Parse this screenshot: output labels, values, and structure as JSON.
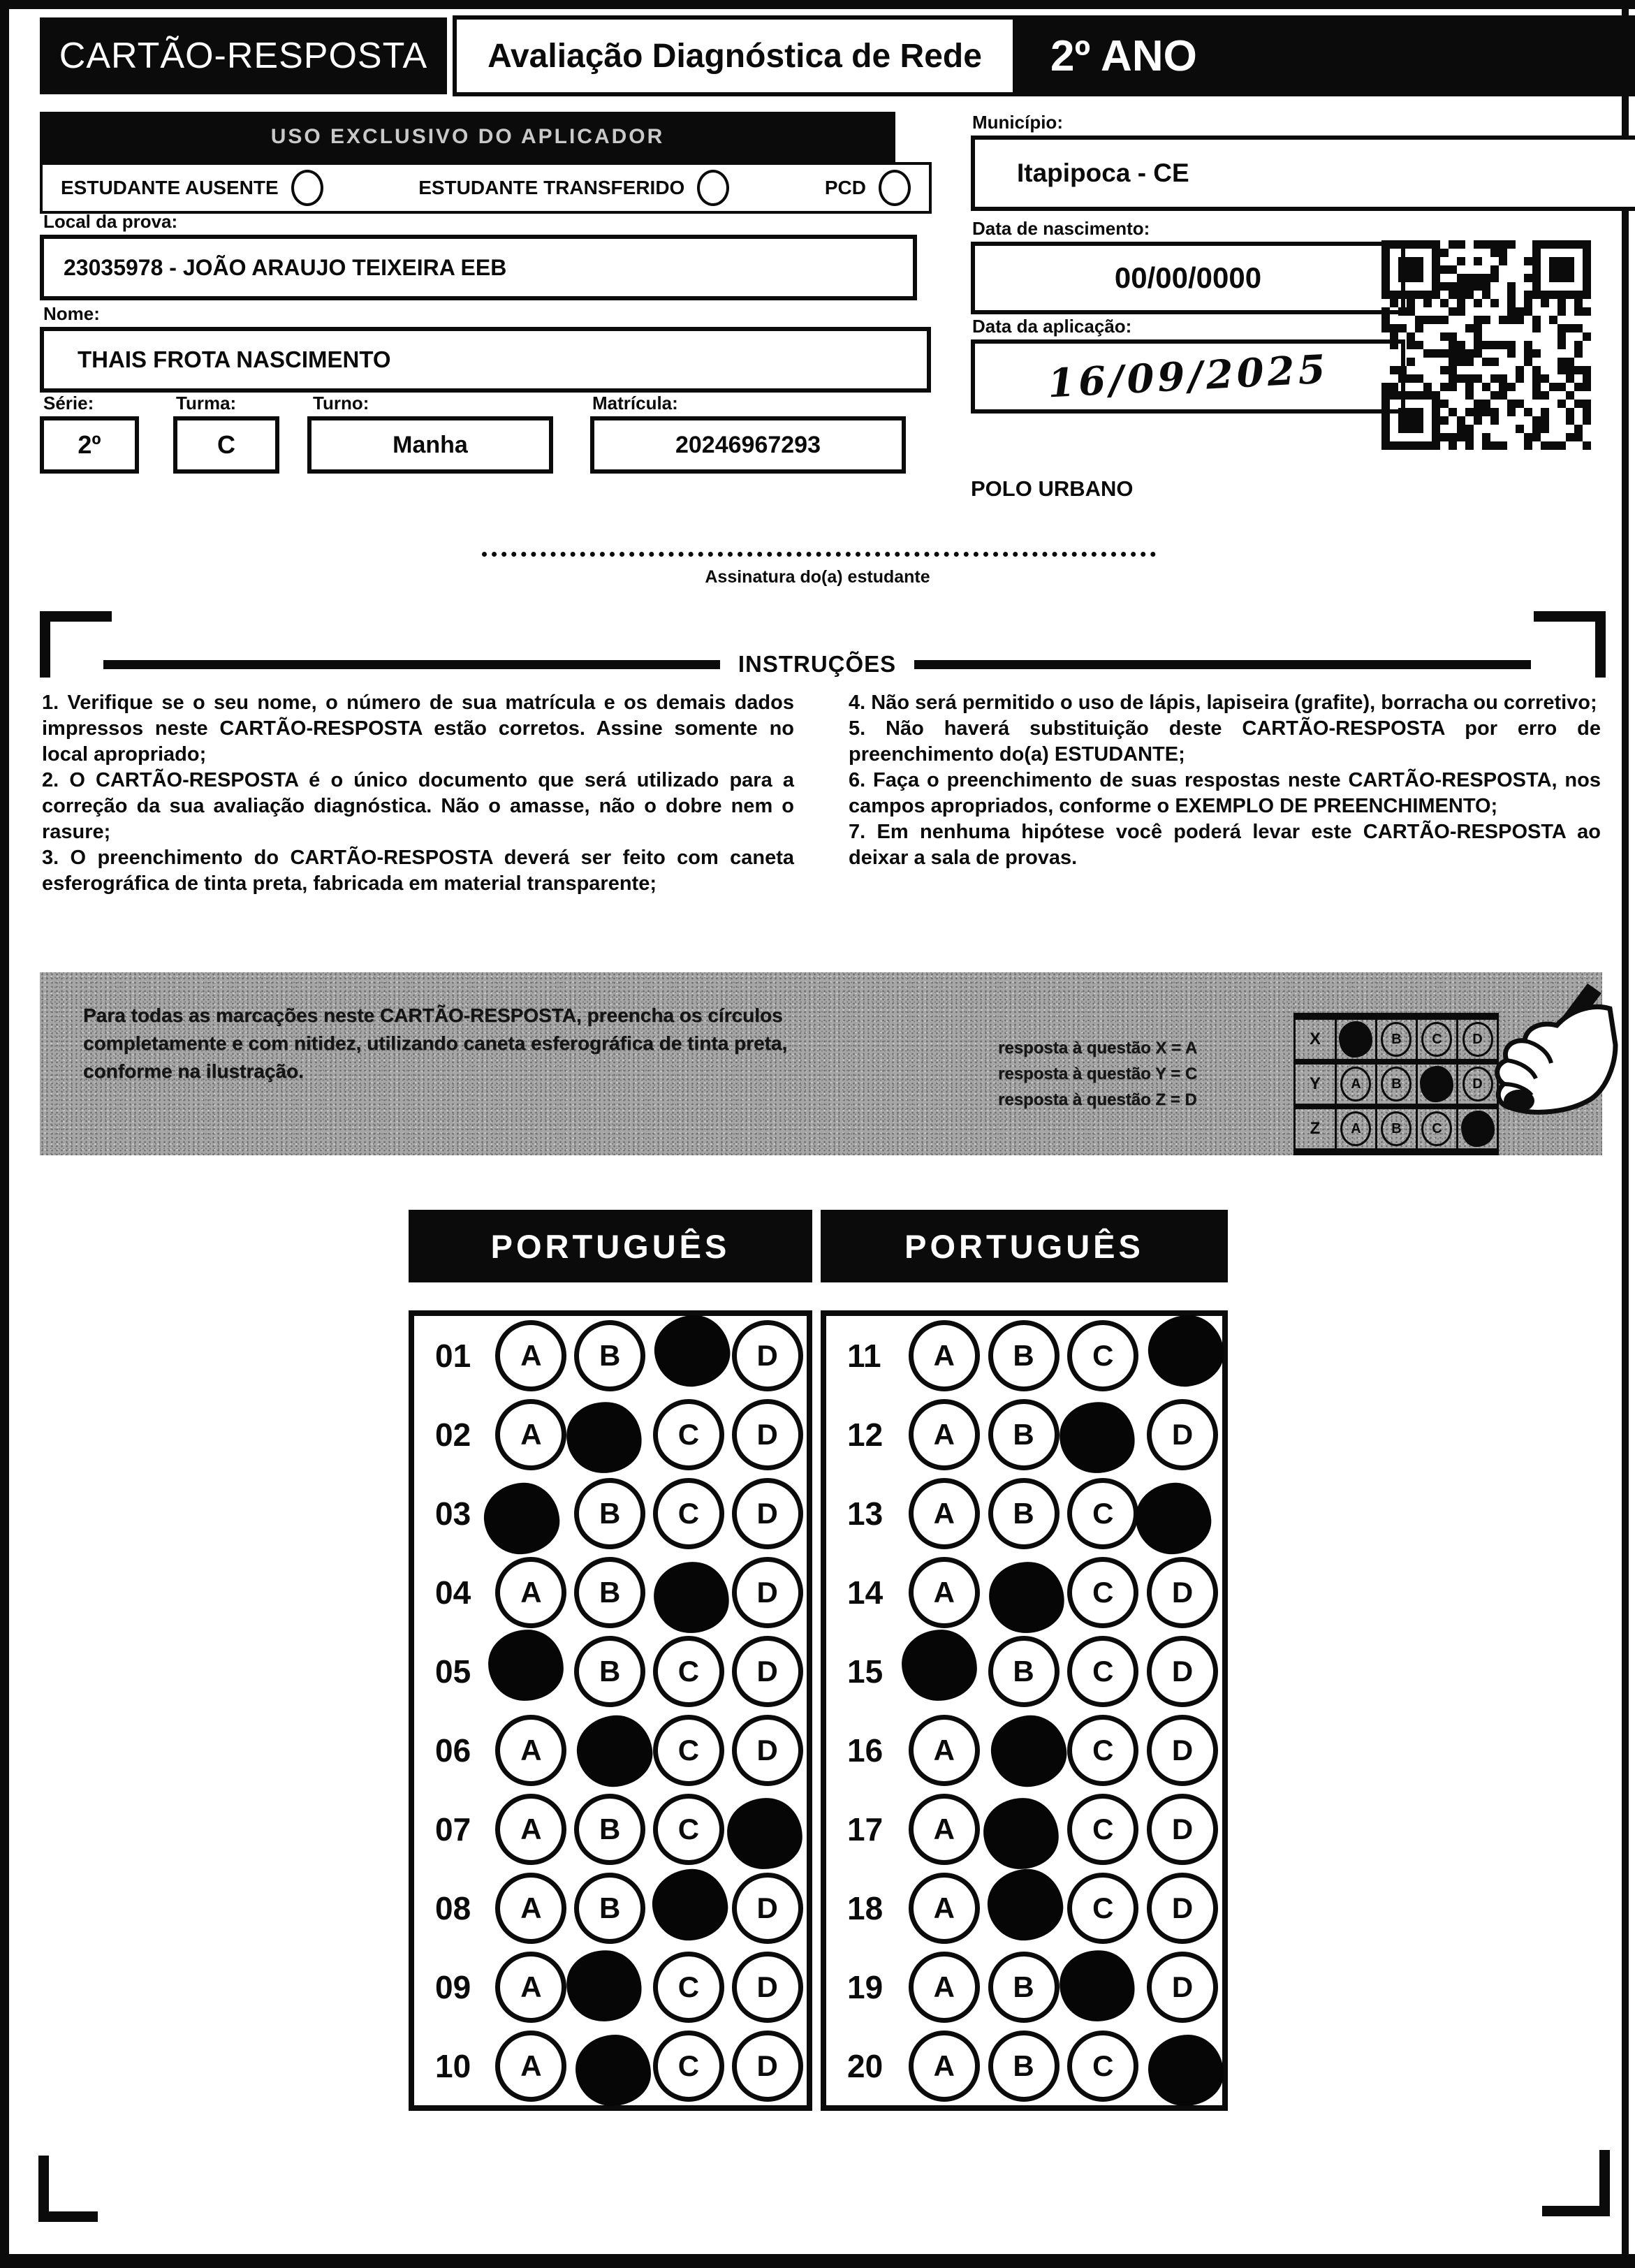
{
  "header": {
    "card_title": "CARTÃO-RESPOSTA",
    "exam_title": "Avaliação Diagnóstica de Rede",
    "grade": "2º ANO"
  },
  "applicator": {
    "band_title": "USO EXCLUSIVO DO APLICADOR",
    "options": [
      {
        "label": "ESTUDANTE AUSENTE"
      },
      {
        "label": "ESTUDANTE TRANSFERIDO"
      },
      {
        "label": "PCD"
      }
    ]
  },
  "fields": {
    "local_label": "Local da prova:",
    "local_value": "23035978 - JOÃO ARAUJO TEIXEIRA EEB",
    "nome_label": "Nome:",
    "nome_value": "THAIS FROTA NASCIMENTO",
    "serie_label": "Série:",
    "serie_value": "2º",
    "turma_label": "Turma:",
    "turma_value": "C",
    "turno_label": "Turno:",
    "turno_value": "Manha",
    "matricula_label": "Matrícula:",
    "matricula_value": "20246967293",
    "municipio_label": "Município:",
    "municipio_value": "Itapipoca - CE",
    "nascimento_label": "Data de nascimento:",
    "nascimento_value": "00/00/0000",
    "aplicacao_label": "Data da aplicação:",
    "aplicacao_value": "16/09/2025",
    "polo": "POLO URBANO"
  },
  "signature": {
    "label": "Assinatura do(a) estudante"
  },
  "instructions": {
    "title": "INSTRUÇÕES",
    "left": [
      "1. Verifique se o seu nome, o número de sua matrícula e os demais dados impressos neste CARTÃO-RESPOSTA estão corretos. Assine somente no local apropriado;",
      "2. O CARTÃO-RESPOSTA é o único documento que será utilizado para a correção da sua avaliação diagnóstica. Não o amasse, não o dobre nem o rasure;",
      "3. O preenchimento do CARTÃO-RESPOSTA deverá ser feito com caneta esferográfica de tinta preta, fabricada em material transparente;"
    ],
    "right": [
      "4. Não será permitido o uso de lápis, lapiseira (grafite), borracha ou corretivo;",
      "5. Não haverá substituição deste CARTÃO-RESPOSTA por erro de preenchimento do(a) ESTUDANTE;",
      "6. Faça o preenchimento de suas respostas neste CARTÃO-RESPOSTA, nos campos apropriados, conforme o EXEMPLO DE PREENCHIMENTO;",
      "7. Em nenhuma hipótese você poderá levar este CARTÃO-RESPOSTA ao deixar a sala de provas."
    ]
  },
  "example": {
    "text": "Para todas as marcações neste CARTÃO-RESPOSTA, preencha os círculos completamente e com nitidez, utilizando caneta esferográfica de tinta preta, conforme na ilustração.",
    "legend": [
      "resposta à questão X = A",
      "resposta à questão Y = C",
      "resposta à questão Z = D"
    ],
    "grid": [
      {
        "label": "X",
        "answer": "A"
      },
      {
        "label": "Y",
        "answer": "C"
      },
      {
        "label": "Z",
        "answer": "D"
      }
    ]
  },
  "choices": [
    "A",
    "B",
    "C",
    "D"
  ],
  "answer_sections": [
    {
      "title": "PORTUGUÊS",
      "questions": [
        {
          "num": "01",
          "answer": "C"
        },
        {
          "num": "02",
          "answer": "B"
        },
        {
          "num": "03",
          "answer": "A"
        },
        {
          "num": "04",
          "answer": "C"
        },
        {
          "num": "05",
          "answer": "A"
        },
        {
          "num": "06",
          "answer": "B"
        },
        {
          "num": "07",
          "answer": "D"
        },
        {
          "num": "08",
          "answer": "C"
        },
        {
          "num": "09",
          "answer": "B"
        },
        {
          "num": "10",
          "answer": "B"
        }
      ]
    },
    {
      "title": "PORTUGUÊS",
      "questions": [
        {
          "num": "11",
          "answer": "D"
        },
        {
          "num": "12",
          "answer": "C"
        },
        {
          "num": "13",
          "answer": "D"
        },
        {
          "num": "14",
          "answer": "B"
        },
        {
          "num": "15",
          "answer": "A"
        },
        {
          "num": "16",
          "answer": "B"
        },
        {
          "num": "17",
          "answer": "B"
        },
        {
          "num": "18",
          "answer": "B"
        },
        {
          "num": "19",
          "answer": "C"
        },
        {
          "num": "20",
          "answer": "D"
        }
      ]
    }
  ]
}
